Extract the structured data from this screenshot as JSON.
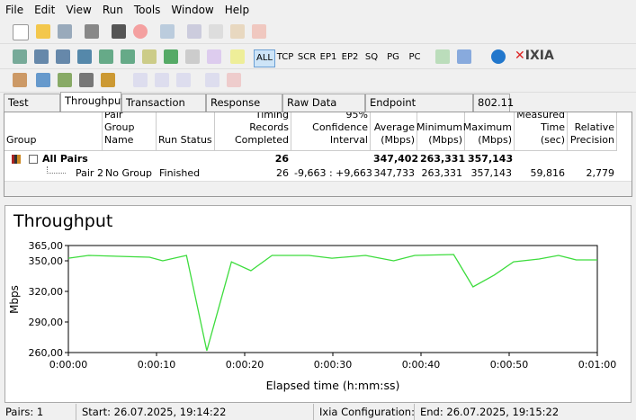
{
  "menu": [
    "File",
    "Edit",
    "View",
    "Run",
    "Tools",
    "Window",
    "Help"
  ],
  "toolbar": {
    "filters": [
      "ALL",
      "TCP",
      "SCR",
      "EP1",
      "EP2",
      "SQ",
      "PG",
      "PC"
    ],
    "logo": "IXIA"
  },
  "tabs": [
    "Test Setup",
    "Throughput",
    "Transaction Rate",
    "Response Time",
    "Raw Data Totals",
    "Endpoint Configuration",
    "802.11"
  ],
  "table": {
    "columns": [
      "Group",
      "Pair Group Name",
      "Run Status",
      "Timing Records Completed",
      "95% Confidence Interval",
      "Average (Mbps)",
      "Minimum (Mbps)",
      "Maximum (Mbps)",
      "Measured Time (sec)",
      "Relative Precision"
    ],
    "rows": [
      [
        "All Pairs",
        null,
        null,
        "26",
        null,
        "347,402",
        "263,331",
        "357,143",
        null,
        null
      ],
      [
        "Pair 2",
        "No Group",
        "Finished",
        "26",
        "-9,663 : +9,663",
        "347,733",
        "263,331",
        "357,143",
        "59,816",
        "2,779"
      ]
    ]
  },
  "chart": {
    "type": "line",
    "title": "Throughput",
    "y_label": "Mbps",
    "x_label": "Elapsed time (h:mm:ss)",
    "color": "#3ddc3d",
    "x": [
      0,
      2.3,
      9.2,
      10.7,
      13.4,
      15.7,
      18.5,
      20.7,
      23.1,
      27.3,
      29.9,
      33.7,
      36.9,
      39.3,
      43.7,
      45.9,
      48.3,
      50.5,
      53.4,
      55.6,
      57.6,
      60
    ],
    "values": [
      352.6,
      355.3,
      353.5,
      350,
      355.3,
      261.8,
      349,
      340.3,
      355.3,
      355.3,
      352.6,
      355.3,
      350,
      355.3,
      356.2,
      324.4,
      336,
      349,
      351.8,
      355.3,
      350.9,
      350.9
    ],
    "xlim": [
      0,
      60
    ],
    "ylim": [
      260,
      365
    ],
    "xticks": [
      {
        "value": 0,
        "label": "0:00:00"
      },
      {
        "value": 10,
        "label": "0:00:10"
      },
      {
        "value": 20,
        "label": "0:00:20"
      },
      {
        "value": 30,
        "label": "0:00:30"
      },
      {
        "value": 40,
        "label": "0:00:40"
      },
      {
        "value": 50,
        "label": "0:00:50"
      },
      {
        "value": 60,
        "label": "0:01:00"
      }
    ],
    "yticks": [
      {
        "value": 260,
        "label": "260,00"
      },
      {
        "value": 290,
        "label": "290,00"
      },
      {
        "value": 320,
        "label": "320,00"
      },
      {
        "value": 350,
        "label": "350,00"
      },
      {
        "value": 365,
        "label": "365,00"
      }
    ]
  },
  "status": {
    "pairs": "Pairs: 1",
    "start": "Start: 26.07.2025, 19:14:22",
    "config": "Ixia Configuration:",
    "end": "End: 26.07.2025, 19:15:22"
  }
}
